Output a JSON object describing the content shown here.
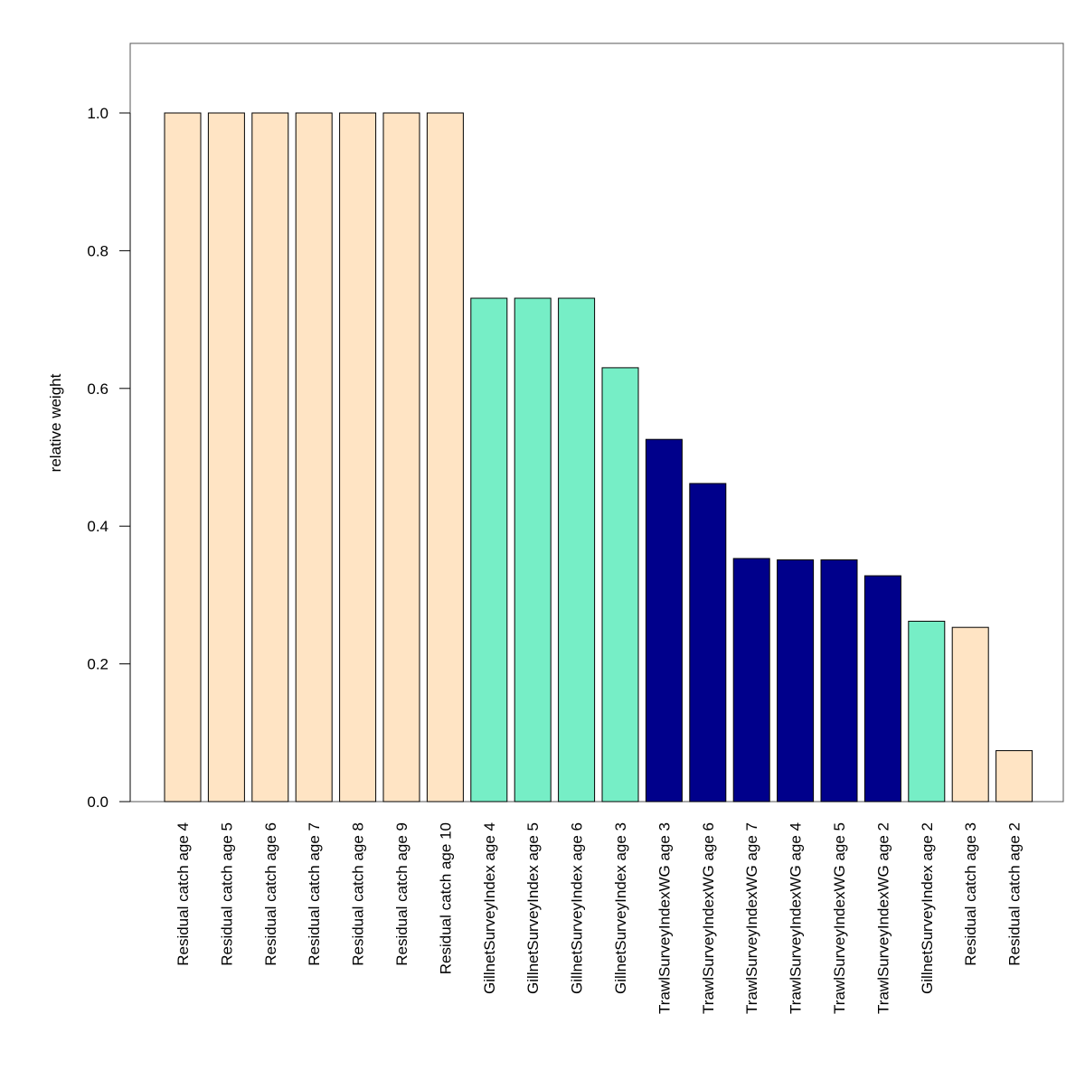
{
  "chart_data": {
    "type": "bar",
    "ylabel": "relative weight",
    "xlabel": "",
    "title": "",
    "ylim": [
      0,
      1.1
    ],
    "yticks": [
      "0.0",
      "0.2",
      "0.4",
      "0.6",
      "0.8",
      "1.0"
    ],
    "grid": false,
    "legend": "none",
    "categories": [
      "Residual catch age 4",
      "Residual catch age 5",
      "Residual catch age 6",
      "Residual catch age 7",
      "Residual catch age 8",
      "Residual catch age 9",
      "Residual catch age 10",
      "GillnetSurveyIndex age 4",
      "GillnetSurveyIndex age 5",
      "GillnetSurveyIndex age 6",
      "GillnetSurveyIndex age 3",
      "TrawlSurveyIndexWG age 3",
      "TrawlSurveyIndexWG age 6",
      "TrawlSurveyIndexWG age 7",
      "TrawlSurveyIndexWG age 4",
      "TrawlSurveyIndexWG age 5",
      "TrawlSurveyIndexWG age 2",
      "GillnetSurveyIndex age 2",
      "Residual catch age 3",
      "Residual catch age 2"
    ],
    "values": [
      1.0,
      1.0,
      1.0,
      1.0,
      1.0,
      1.0,
      1.0,
      0.731,
      0.731,
      0.731,
      0.63,
      0.526,
      0.462,
      0.353,
      0.351,
      0.351,
      0.328,
      0.262,
      0.253,
      0.074
    ],
    "bar_colors": [
      "#FFE4C4",
      "#FFE4C4",
      "#FFE4C4",
      "#FFE4C4",
      "#FFE4C4",
      "#FFE4C4",
      "#FFE4C4",
      "#76EEC6",
      "#76EEC6",
      "#76EEC6",
      "#76EEC6",
      "#00008B",
      "#00008B",
      "#00008B",
      "#00008B",
      "#00008B",
      "#00008B",
      "#76EEC6",
      "#FFE4C4",
      "#FFE4C4"
    ]
  }
}
